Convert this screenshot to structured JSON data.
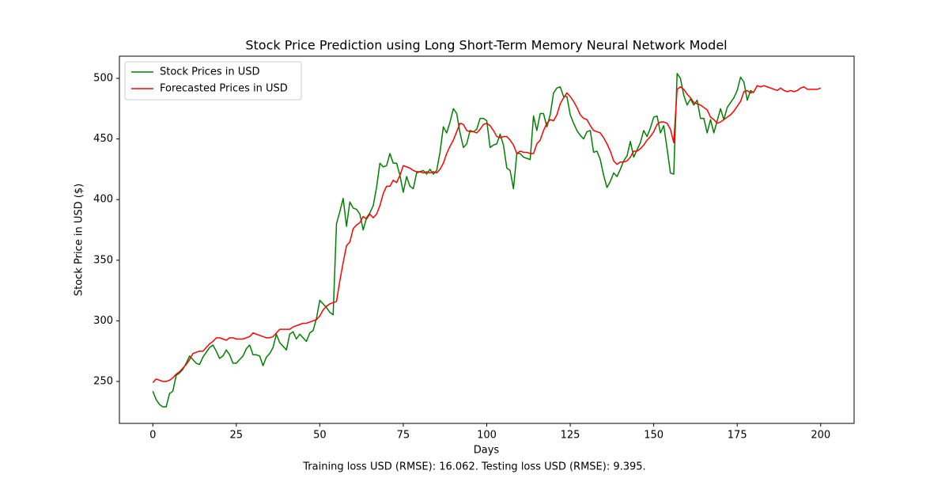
{
  "chart_data": {
    "type": "line",
    "title": "Stock Price Prediction using Long Short-Term Memory Neural Network Model",
    "xlabel": "Days",
    "ylabel": "Stock Price in USD ($)",
    "caption": "Training loss USD (RMSE): 16.062. Testing loss USD (RMSE): 9.395.",
    "legend": "upper left",
    "xlim": [
      -10,
      210
    ],
    "ylim": [
      215.4,
      518.3
    ],
    "xticks": [
      0,
      25,
      50,
      75,
      100,
      125,
      150,
      175,
      200
    ],
    "yticks": [
      250,
      300,
      350,
      400,
      450,
      500
    ],
    "x": [
      0,
      1,
      2,
      3,
      4,
      5,
      6,
      7,
      8,
      9,
      10,
      11,
      12,
      13,
      14,
      15,
      16,
      17,
      18,
      19,
      20,
      21,
      22,
      23,
      24,
      25,
      26,
      27,
      28,
      29,
      30,
      31,
      32,
      33,
      34,
      35,
      36,
      37,
      38,
      39,
      40,
      41,
      42,
      43,
      44,
      45,
      46,
      47,
      48,
      49,
      50,
      51,
      52,
      53,
      54,
      55,
      56,
      57,
      58,
      59,
      60,
      61,
      62,
      63,
      64,
      65,
      66,
      67,
      68,
      69,
      70,
      71,
      72,
      73,
      74,
      75,
      76,
      77,
      78,
      79,
      80,
      81,
      82,
      83,
      84,
      85,
      86,
      87,
      88,
      89,
      90,
      91,
      92,
      93,
      94,
      95,
      96,
      97,
      98,
      99,
      100,
      101,
      102,
      103,
      104,
      105,
      106,
      107,
      108,
      109,
      110,
      111,
      112,
      113,
      114,
      115,
      116,
      117,
      118,
      119,
      120,
      121,
      122,
      123,
      124,
      125,
      126,
      127,
      128,
      129,
      130,
      131,
      132,
      133,
      134,
      135,
      136,
      137,
      138,
      139,
      140,
      141,
      142,
      143,
      144,
      145,
      146,
      147,
      148,
      149,
      150,
      151,
      152,
      153,
      154,
      155,
      156,
      157,
      158,
      159,
      160,
      161,
      162,
      163,
      164,
      165,
      166,
      167,
      168,
      169,
      170,
      171,
      172,
      173,
      174,
      175,
      176,
      177,
      178,
      179,
      180,
      181,
      182,
      183,
      184,
      185,
      186,
      187,
      188,
      189,
      190,
      191,
      192,
      193,
      194,
      195,
      196,
      197,
      198,
      199,
      200
    ],
    "series": [
      {
        "name": "Stock Prices in USD",
        "color": "green",
        "values": [
          242,
          235,
          231,
          229,
          229,
          240,
          242,
          255,
          257,
          260,
          265,
          271,
          268,
          265,
          264,
          270,
          274,
          278,
          280,
          275,
          269,
          271,
          276,
          272,
          265,
          265,
          268,
          271,
          277,
          280,
          272,
          272,
          271,
          263,
          270,
          273,
          278,
          289,
          282,
          279,
          276,
          289,
          291,
          285,
          289,
          286,
          283,
          290,
          292,
          302,
          317,
          314,
          311,
          307,
          305,
          380,
          390,
          401,
          378,
          398,
          393,
          392,
          388,
          375,
          385,
          389,
          395,
          410,
          430,
          427,
          428,
          438,
          430,
          430,
          420,
          406,
          419,
          411,
          409,
          422,
          423,
          424,
          421,
          425,
          421,
          424,
          439,
          460,
          455,
          464,
          475,
          471,
          455,
          443,
          446,
          457,
          456,
          458,
          467,
          467,
          465,
          443,
          445,
          446,
          454,
          445,
          426,
          424,
          409,
          438,
          438,
          435,
          434,
          433,
          469,
          457,
          471,
          471,
          460,
          470,
          488,
          492,
          493,
          485,
          485,
          470,
          463,
          457,
          453,
          450,
          456,
          457,
          439,
          440,
          433,
          420,
          410,
          415,
          422,
          419,
          425,
          432,
          436,
          448,
          435,
          441,
          447,
          457,
          452,
          459,
          468,
          469,
          455,
          461,
          442,
          422,
          421,
          504,
          500,
          486,
          478,
          483,
          478,
          482,
          467,
          467,
          455,
          466,
          455,
          465,
          475,
          466,
          476,
          480,
          484,
          490,
          501,
          497,
          482,
          490,
          488,
          null,
          null,
          null,
          null,
          null,
          null,
          null,
          null,
          null,
          null,
          null,
          null,
          null,
          null,
          null,
          null,
          null,
          null,
          null,
          null
        ]
      },
      {
        "name": "Forecasted Prices in USD",
        "color": "red",
        "values": [
          249,
          252,
          251,
          250,
          250,
          251,
          253,
          256,
          258,
          261,
          264,
          268,
          273,
          274,
          275,
          275,
          278,
          281,
          283,
          286,
          286,
          285,
          284,
          286,
          286,
          285,
          285,
          285,
          286,
          287,
          290,
          289,
          288,
          287,
          286,
          286,
          287,
          290,
          293,
          293,
          293,
          293,
          295,
          296,
          297,
          298,
          298,
          299,
          300,
          301,
          304,
          309,
          312,
          314,
          315,
          316,
          333,
          348,
          362,
          365,
          376,
          379,
          381,
          386,
          384,
          388,
          385,
          388,
          395,
          405,
          411,
          411,
          416,
          414,
          420,
          428,
          427,
          426,
          424,
          423,
          423,
          422,
          423,
          422,
          423,
          422,
          425,
          430,
          438,
          444,
          449,
          456,
          463,
          462,
          457,
          456,
          456,
          455,
          458,
          462,
          463,
          461,
          457,
          452,
          451,
          452,
          452,
          449,
          445,
          438,
          440,
          439,
          439,
          438,
          438,
          446,
          449,
          457,
          463,
          466,
          465,
          470,
          479,
          484,
          488,
          485,
          481,
          476,
          470,
          467,
          466,
          461,
          457,
          456,
          455,
          451,
          446,
          440,
          432,
          429,
          431,
          431,
          432,
          435,
          440,
          440,
          442,
          445,
          449,
          452,
          456,
          462,
          464,
          464,
          463,
          458,
          447,
          491,
          493,
          491,
          487,
          484,
          480,
          479,
          478,
          476,
          474,
          468,
          466,
          463,
          464,
          466,
          468,
          470,
          473,
          477,
          481,
          489,
          490,
          488,
          489,
          494,
          493,
          494,
          493,
          492,
          491,
          490,
          492,
          490,
          489,
          490,
          489,
          490,
          492,
          493,
          491,
          491,
          491,
          491,
          492
        ]
      }
    ]
  }
}
